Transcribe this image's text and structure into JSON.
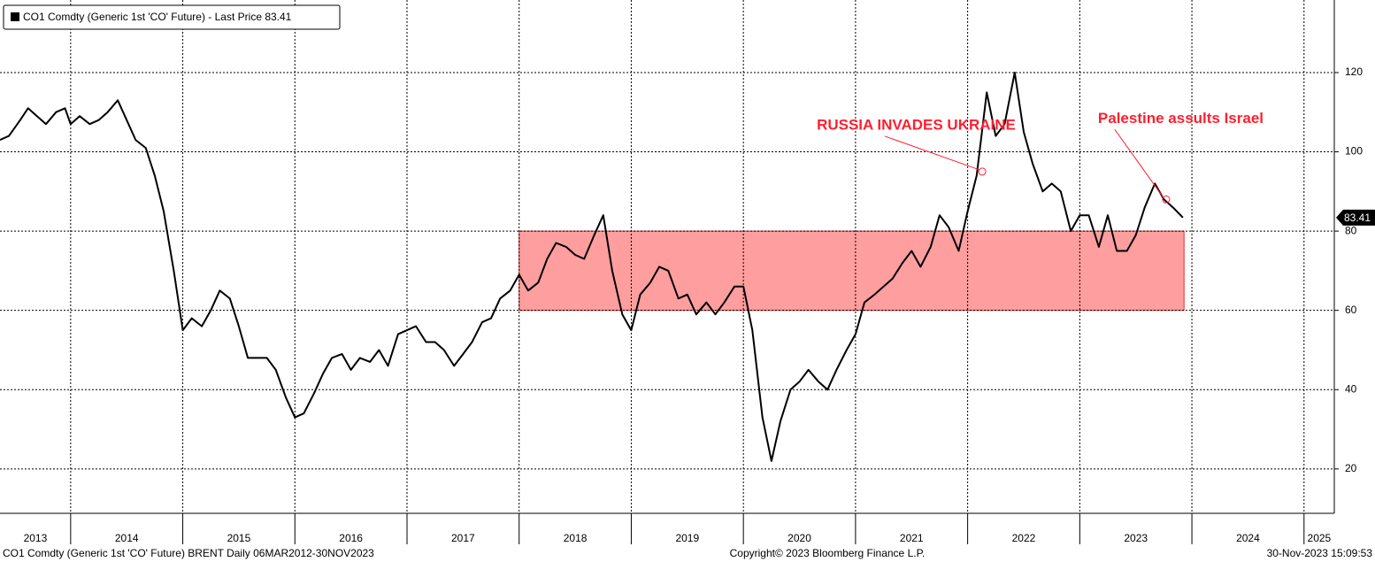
{
  "chart_data": {
    "type": "line",
    "x": [
      2013.37,
      2013.45,
      2013.55,
      2013.62,
      2013.7,
      2013.78,
      2013.87,
      2013.95,
      2014.0,
      2014.08,
      2014.17,
      2014.25,
      2014.33,
      2014.42,
      2014.5,
      2014.58,
      2014.67,
      2014.75,
      2014.83,
      2014.92,
      2015.0,
      2015.08,
      2015.17,
      2015.25,
      2015.33,
      2015.42,
      2015.5,
      2015.58,
      2015.67,
      2015.75,
      2015.83,
      2015.92,
      2016.0,
      2016.08,
      2016.17,
      2016.25,
      2016.33,
      2016.42,
      2016.5,
      2016.58,
      2016.67,
      2016.75,
      2016.83,
      2016.92,
      2017.0,
      2017.08,
      2017.17,
      2017.25,
      2017.33,
      2017.42,
      2017.5,
      2017.58,
      2017.67,
      2017.75,
      2017.83,
      2017.92,
      2018.0,
      2018.08,
      2018.17,
      2018.25,
      2018.33,
      2018.42,
      2018.5,
      2018.58,
      2018.67,
      2018.75,
      2018.83,
      2018.92,
      2019.0,
      2019.08,
      2019.17,
      2019.25,
      2019.33,
      2019.42,
      2019.5,
      2019.58,
      2019.67,
      2019.75,
      2019.83,
      2019.92,
      2020.0,
      2020.08,
      2020.17,
      2020.25,
      2020.33,
      2020.42,
      2020.5,
      2020.58,
      2020.67,
      2020.75,
      2020.83,
      2020.92,
      2021.0,
      2021.08,
      2021.17,
      2021.25,
      2021.33,
      2021.42,
      2021.5,
      2021.58,
      2021.67,
      2021.75,
      2021.83,
      2021.92,
      2022.0,
      2022.08,
      2022.17,
      2022.25,
      2022.33,
      2022.42,
      2022.5,
      2022.58,
      2022.67,
      2022.75,
      2022.83,
      2022.92,
      2023.0,
      2023.08,
      2023.17,
      2023.25,
      2023.33,
      2023.42,
      2023.5,
      2023.58,
      2023.67,
      2023.75,
      2023.83,
      2023.92
    ],
    "series": [
      {
        "name": "CO1 Comdty (Generic 1st 'CO' Future) - Last Price 83.41",
        "color": "#000000",
        "values": [
          103,
          104,
          108,
          111,
          109,
          107,
          110,
          111,
          107,
          109,
          107,
          108,
          110,
          113,
          108,
          103,
          101,
          94,
          85,
          70,
          55,
          58,
          56,
          60,
          65,
          63,
          56,
          48,
          48,
          48,
          45,
          38,
          33,
          34,
          39,
          44,
          48,
          49,
          45,
          48,
          47,
          50,
          46,
          54,
          55,
          56,
          52,
          52,
          50,
          46,
          49,
          52,
          57,
          58,
          63,
          65,
          69,
          65,
          67,
          73,
          77,
          76,
          74,
          73,
          79,
          84,
          70,
          59,
          55,
          64,
          67,
          71,
          70,
          63,
          64,
          59,
          62,
          59,
          62,
          66,
          66,
          55,
          33,
          22,
          32,
          40,
          42,
          45,
          42,
          40,
          45,
          50,
          54,
          62,
          64,
          66,
          68,
          72,
          75,
          71,
          76,
          84,
          81,
          75,
          85,
          94,
          115,
          104,
          107,
          120,
          105,
          97,
          90,
          92,
          90,
          80,
          84,
          84,
          76,
          84,
          75,
          75,
          79,
          86,
          92,
          88,
          86,
          83.41
        ]
      }
    ],
    "last_price": 83.41,
    "xlim": [
      2013.37,
      2025.27
    ],
    "xticks": [
      2013,
      2014,
      2015,
      2016,
      2017,
      2018,
      2019,
      2020,
      2021,
      2022,
      2023,
      2024,
      2025
    ],
    "ylim": [
      8.8,
      138.3
    ],
    "yticks": [
      20,
      40,
      60,
      80,
      100,
      120
    ],
    "grid": true,
    "band": {
      "color": "#ff9e9e",
      "x": [
        2018.0,
        2023.93
      ],
      "y": [
        60,
        80
      ]
    },
    "annotations": [
      {
        "text": "RUSSIA INVADES UKRAINE",
        "x": 2022.13,
        "y": 95
      },
      {
        "text": "Palestine assults Israel",
        "x": 2023.77,
        "y": 88
      }
    ],
    "footer": [
      "CO1 Comdty (Generic 1st 'CO' Future) BRENT  Daily 06MAR2012-30NOV2023",
      "Copyright© 2023 Bloomberg Finance L.P.",
      "30-Nov-2023 15:09:53"
    ]
  }
}
